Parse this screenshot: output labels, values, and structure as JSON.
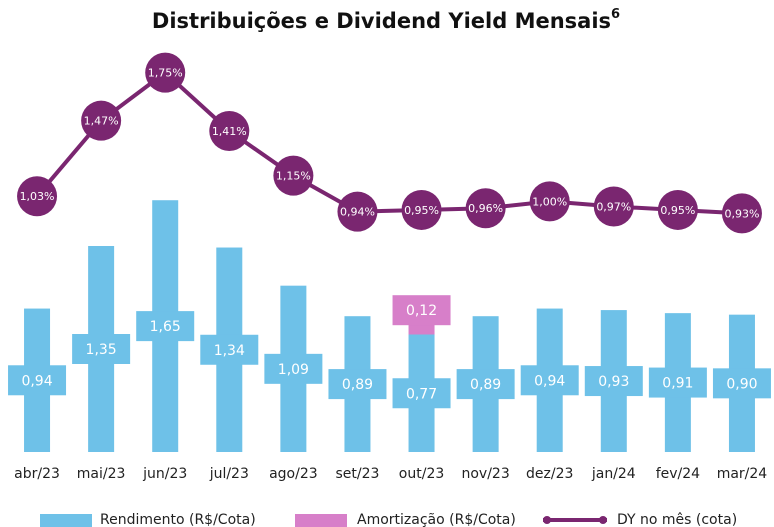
{
  "chart_data": {
    "type": "bar-line",
    "title": "Distribuições e Dividend Yield Mensais",
    "title_superscript": "6",
    "categories": [
      "abr/23",
      "mai/23",
      "jun/23",
      "jul/23",
      "ago/23",
      "set/23",
      "out/23",
      "nov/23",
      "dez/23",
      "jan/24",
      "fev/24",
      "mar/24"
    ],
    "ylim": [
      0,
      2.7
    ],
    "y2lim": [
      -0.46,
      1.94
    ],
    "series": [
      {
        "name": "Rendimento (R$/Cota)",
        "color": "#6ec1e8",
        "type": "bar",
        "values": [
          0.94,
          1.35,
          1.65,
          1.34,
          1.09,
          0.89,
          0.77,
          0.89,
          0.94,
          0.93,
          0.91,
          0.9
        ],
        "value_labels": [
          "0,94",
          "1,35",
          "1,65",
          "1,34",
          "1,09",
          "0,89",
          "0,77",
          "0,89",
          "0,94",
          "0,93",
          "0,91",
          "0,90"
        ]
      },
      {
        "name": "Amortização (R$/Cota)",
        "color": "#d77fc9",
        "type": "bar",
        "values": [
          null,
          null,
          null,
          null,
          null,
          null,
          0.12,
          null,
          null,
          null,
          null,
          null
        ],
        "value_labels": [
          null,
          null,
          null,
          null,
          null,
          null,
          "0,12",
          null,
          null,
          null,
          null,
          null
        ]
      },
      {
        "name": "DY no mês (cota)",
        "color": "#7a2670",
        "type": "line",
        "axis": "y2",
        "values": [
          1.03,
          1.47,
          1.75,
          1.41,
          1.15,
          0.94,
          0.95,
          0.96,
          1.0,
          0.97,
          0.95,
          0.93
        ],
        "value_labels": [
          "1,03%",
          "1,47%",
          "1,75%",
          "1,41%",
          "1,15%",
          "0,94%",
          "0,95%",
          "0,96%",
          "1,00%",
          "0,97%",
          "0,95%",
          "0,93%"
        ]
      }
    ]
  }
}
